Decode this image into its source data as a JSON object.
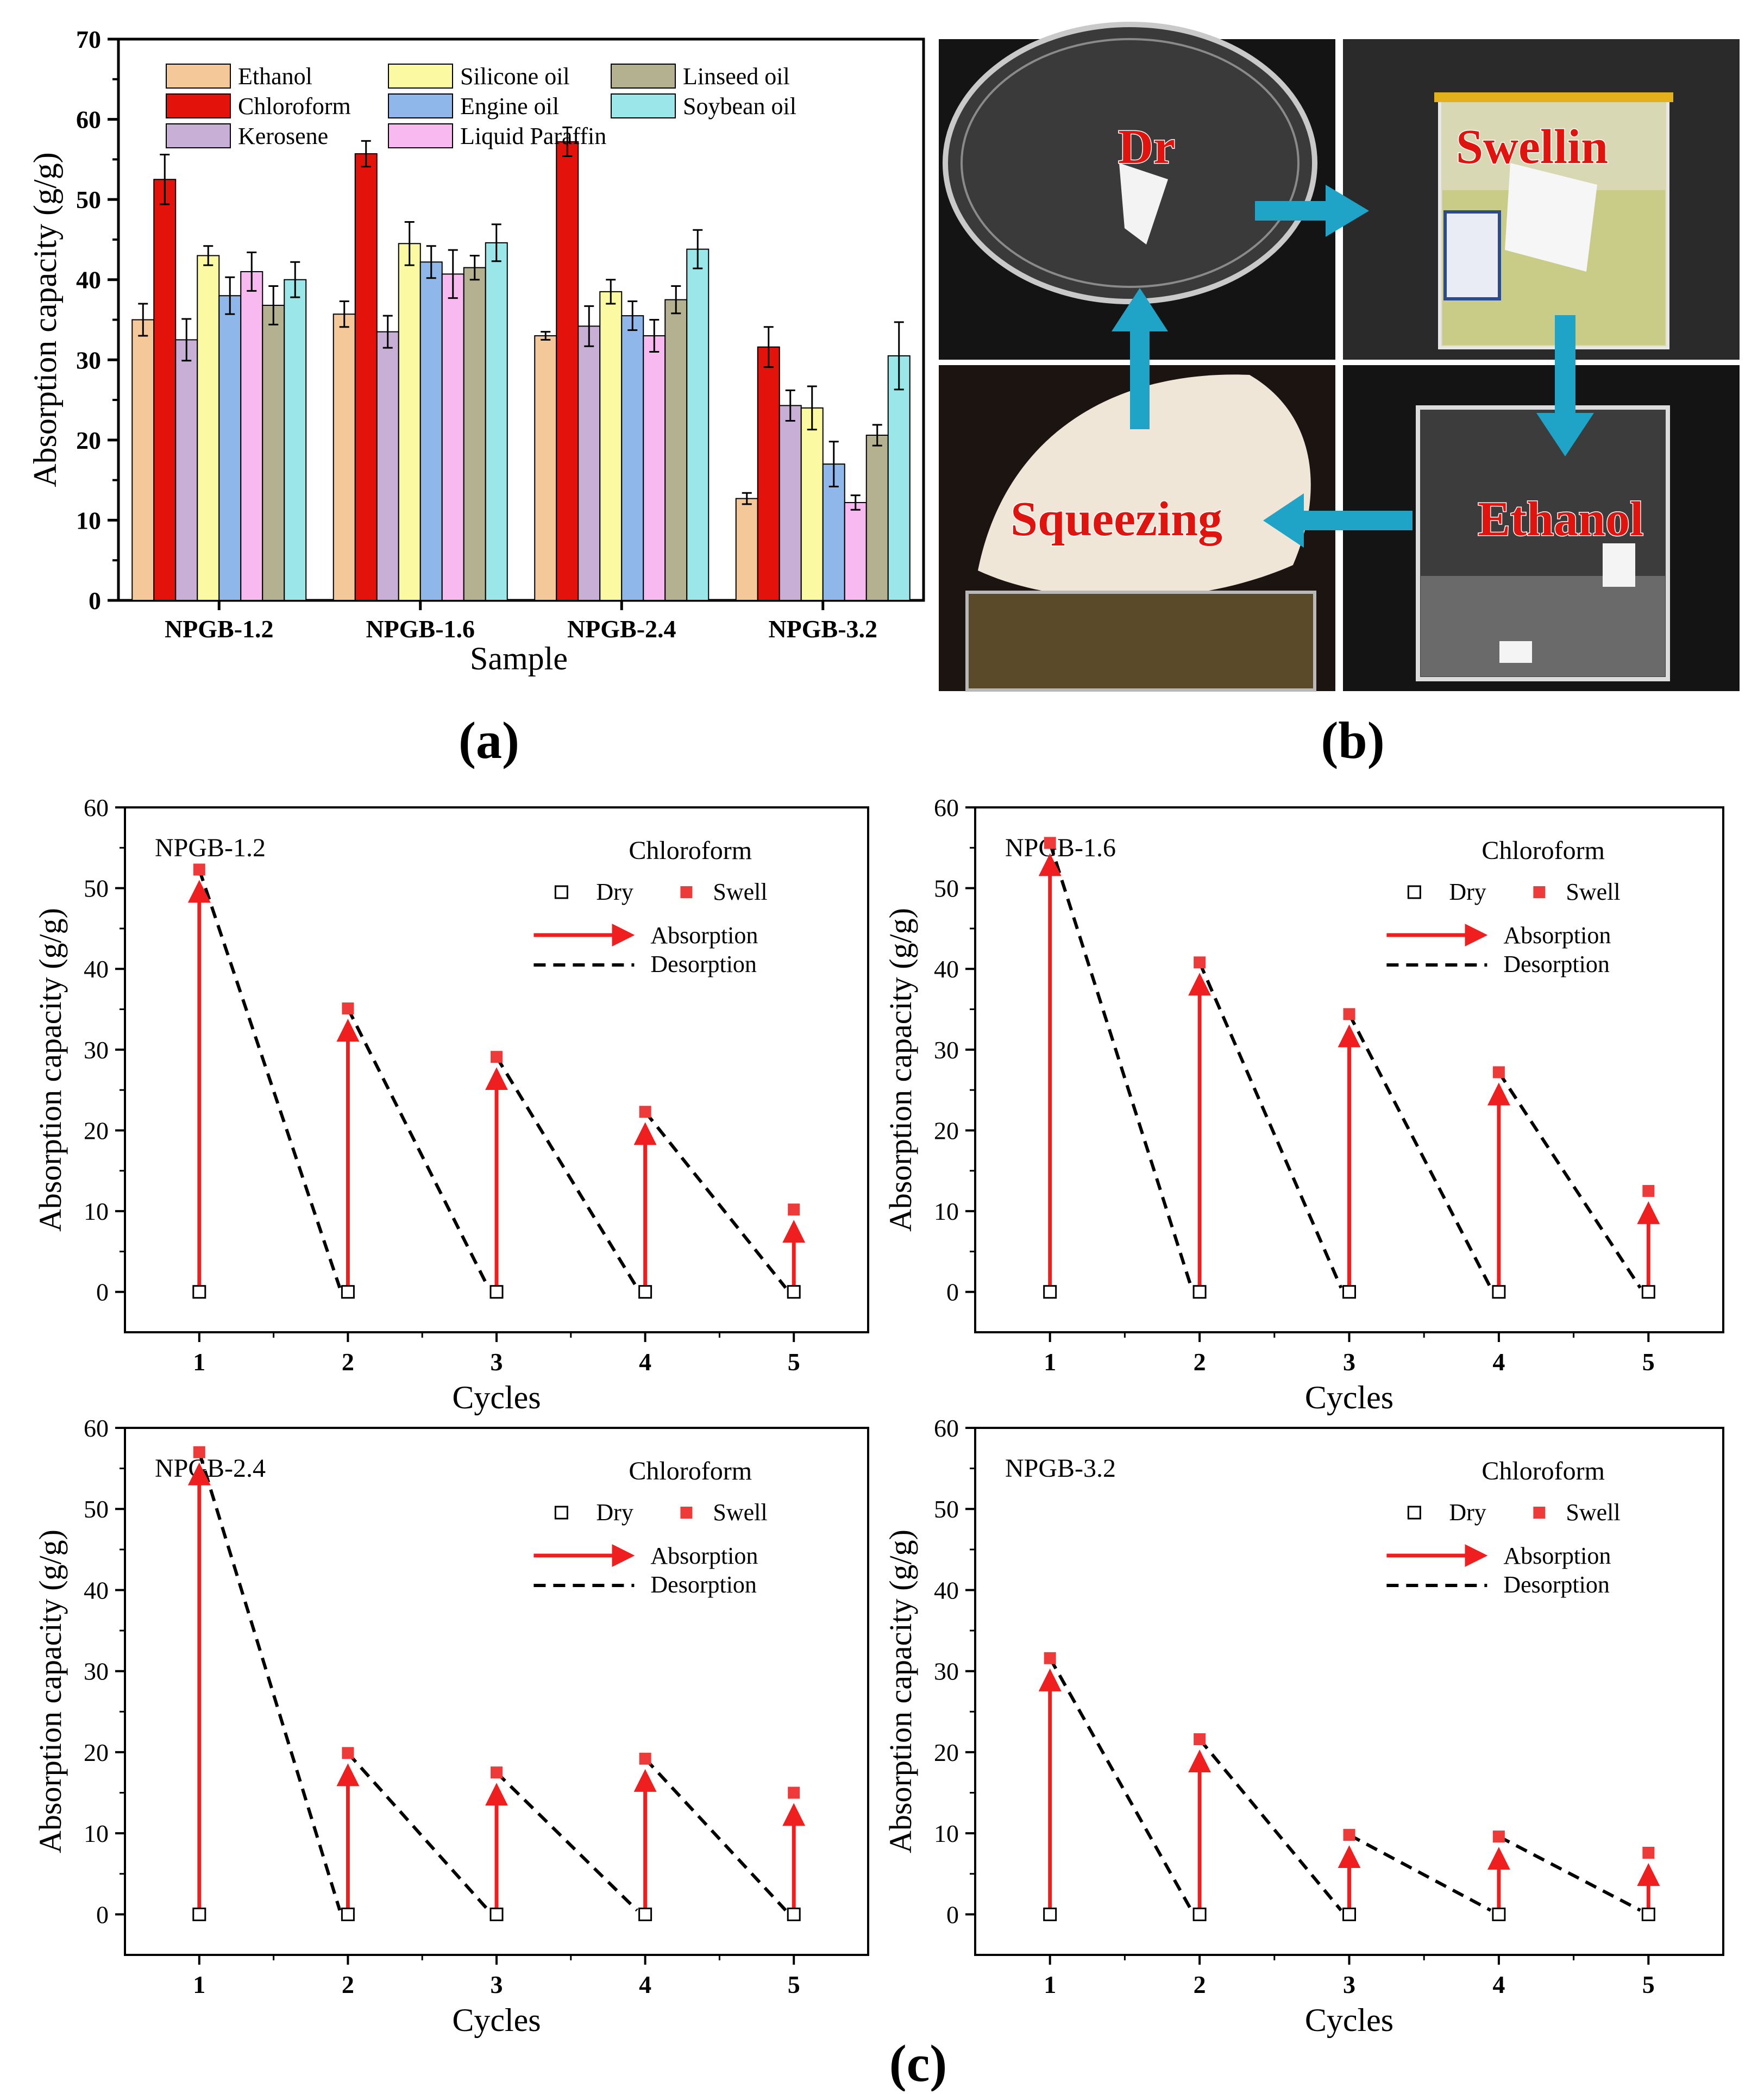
{
  "panel_labels": {
    "a": "(a)",
    "b": "(b)",
    "c": "(c)"
  },
  "colors": {
    "Ethanol": "#f5c89a",
    "Chloroform": "#e3120b",
    "Kerosene": "#c8afd6",
    "Silicone oil": "#fbfaa3",
    "Engine oil": "#8fb7ea",
    "Liquid Paraffin": "#f7b9ef",
    "Linseed oil": "#b3b18f",
    "Soybean oil": "#9be6e8",
    "arrow": "#ef1f1f",
    "swell_marker": "#ef3a3a",
    "teal_arrow": "#1fa3c7"
  },
  "photo_panel": {
    "labels": {
      "dry": "Dr",
      "swelling": "Swellin",
      "ethanol": "Ethanol",
      "squeezing": "Squeezing"
    }
  },
  "chart_data": [
    {
      "type": "bar",
      "ylabel": "Absorption capacity (g/g)",
      "xlabel": "Sample",
      "ylim": [
        0,
        70
      ],
      "yticks": [
        0,
        10,
        20,
        30,
        40,
        50,
        60,
        70
      ],
      "categories": [
        "NPGB-1.2",
        "NPGB-1.6",
        "NPGB-2.4",
        "NPGB-3.2"
      ],
      "legend_position": "top-left",
      "series": [
        {
          "name": "Ethanol",
          "values": [
            35.0,
            35.7,
            33.0,
            12.7
          ],
          "errors": [
            2.0,
            1.6,
            0.5,
            0.7
          ]
        },
        {
          "name": "Chloroform",
          "values": [
            52.5,
            55.7,
            57.2,
            31.6
          ],
          "errors": [
            3.1,
            1.6,
            1.8,
            2.5
          ]
        },
        {
          "name": "Kerosene",
          "values": [
            32.5,
            33.5,
            34.2,
            24.3
          ],
          "errors": [
            2.6,
            2.0,
            2.5,
            1.9
          ]
        },
        {
          "name": "Silicone oil",
          "values": [
            43.0,
            44.5,
            38.5,
            24.0
          ],
          "errors": [
            1.2,
            2.7,
            1.5,
            2.7
          ]
        },
        {
          "name": "Engine oil",
          "values": [
            38.0,
            42.2,
            35.5,
            17.0
          ],
          "errors": [
            2.3,
            2.0,
            1.8,
            2.8
          ]
        },
        {
          "name": "Liquid Paraffin",
          "values": [
            41.0,
            40.7,
            33.0,
            12.2
          ],
          "errors": [
            2.4,
            3.0,
            2.0,
            0.9
          ]
        },
        {
          "name": "Linseed oil",
          "values": [
            36.8,
            41.5,
            37.5,
            20.6
          ],
          "errors": [
            2.4,
            1.5,
            1.7,
            1.3
          ]
        },
        {
          "name": "Soybean oil",
          "values": [
            40.0,
            44.6,
            43.8,
            30.5
          ],
          "errors": [
            2.2,
            2.3,
            2.4,
            4.2
          ]
        }
      ]
    },
    {
      "type": "scatter",
      "annotation": "NPGB-1.2",
      "legend_title": "Chloroform",
      "legend": [
        "Dry",
        "Swell",
        "Absorption",
        "Desorption"
      ],
      "xlabel": "Cycles",
      "ylabel": "Absorption capacity (g/g)",
      "xlim": [
        0.5,
        5.5
      ],
      "ylim": [
        -5,
        60
      ],
      "x": [
        1,
        2,
        3,
        4,
        5
      ],
      "yticks": [
        0,
        10,
        20,
        30,
        40,
        50,
        60
      ],
      "series": [
        {
          "name": "Dry",
          "values": [
            0,
            0,
            0,
            0,
            0
          ]
        },
        {
          "name": "Swell",
          "values": [
            52.3,
            35.1,
            29.1,
            22.3,
            10.2
          ]
        }
      ]
    },
    {
      "type": "scatter",
      "annotation": "NPGB-1.6",
      "legend_title": "Chloroform",
      "legend": [
        "Dry",
        "Swell",
        "Absorption",
        "Desorption"
      ],
      "xlabel": "Cycles",
      "ylabel": "Absorption capacity (g/g)",
      "xlim": [
        0.5,
        5.5
      ],
      "ylim": [
        -5,
        60
      ],
      "x": [
        1,
        2,
        3,
        4,
        5
      ],
      "yticks": [
        0,
        10,
        20,
        30,
        40,
        50,
        60
      ],
      "series": [
        {
          "name": "Dry",
          "values": [
            0,
            0,
            0,
            0,
            0
          ]
        },
        {
          "name": "Swell",
          "values": [
            55.6,
            40.8,
            34.4,
            27.2,
            12.5
          ]
        }
      ]
    },
    {
      "type": "scatter",
      "annotation": "NPGB-2.4",
      "legend_title": "Chloroform",
      "legend": [
        "Dry",
        "Swell",
        "Absorption",
        "Desorption"
      ],
      "xlabel": "Cycles",
      "ylabel": "Absorption capacity (g/g)",
      "xlim": [
        0.5,
        5.5
      ],
      "ylim": [
        -5,
        60
      ],
      "x": [
        1,
        2,
        3,
        4,
        5
      ],
      "yticks": [
        0,
        10,
        20,
        30,
        40,
        50,
        60
      ],
      "series": [
        {
          "name": "Dry",
          "values": [
            0,
            0,
            0,
            0,
            0
          ]
        },
        {
          "name": "Swell",
          "values": [
            57.0,
            19.9,
            17.5,
            19.2,
            15.0
          ]
        }
      ]
    },
    {
      "type": "scatter",
      "annotation": "NPGB-3.2",
      "legend_title": "Chloroform",
      "legend": [
        "Dry",
        "Swell",
        "Absorption",
        "Desorption"
      ],
      "xlabel": "Cycles",
      "ylabel": "Absorption capacity (g/g)",
      "xlim": [
        0.5,
        5.5
      ],
      "ylim": [
        -5,
        60
      ],
      "x": [
        1,
        2,
        3,
        4,
        5
      ],
      "yticks": [
        0,
        10,
        20,
        30,
        40,
        50,
        60
      ],
      "series": [
        {
          "name": "Dry",
          "values": [
            0,
            0,
            0,
            0,
            0
          ]
        },
        {
          "name": "Swell",
          "values": [
            31.6,
            21.6,
            9.8,
            9.6,
            7.6
          ]
        }
      ]
    }
  ]
}
